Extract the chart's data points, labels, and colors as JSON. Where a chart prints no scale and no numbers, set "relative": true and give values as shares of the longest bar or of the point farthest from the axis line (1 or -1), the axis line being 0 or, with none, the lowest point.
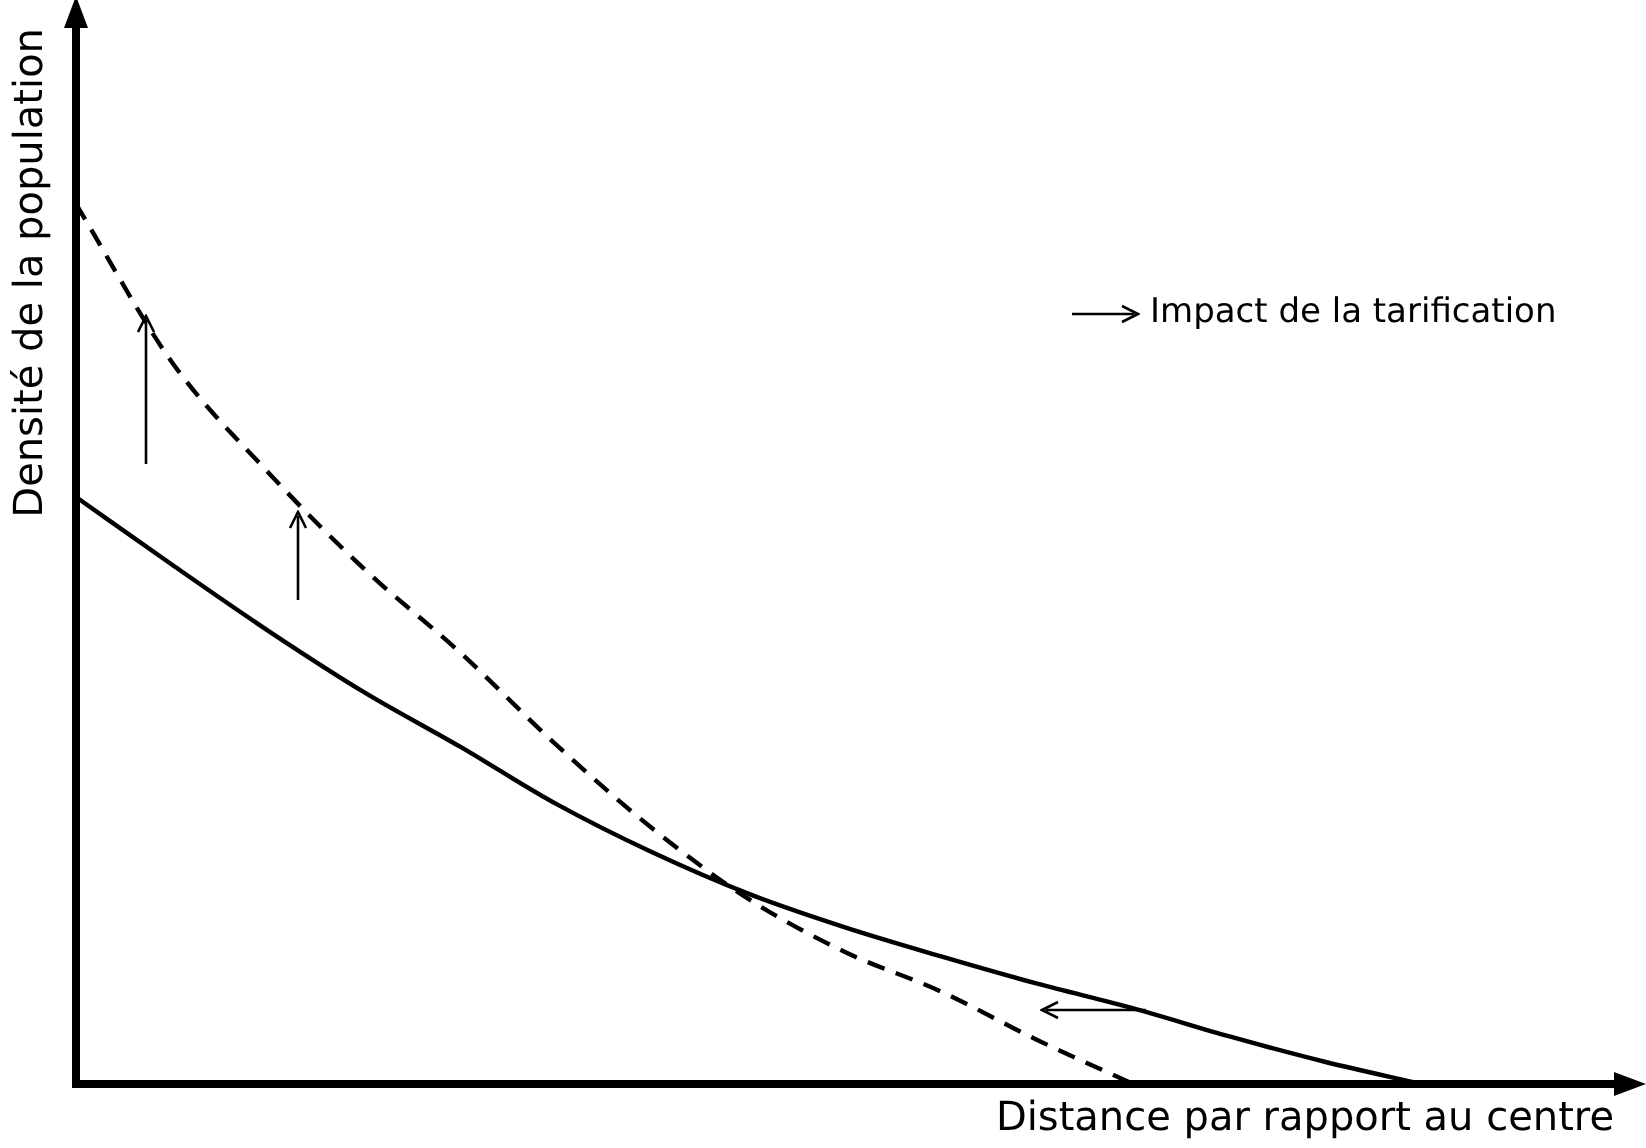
{
  "chart_data": {
    "type": "line",
    "relative": true,
    "xlabel": "Distance par rapport au centre",
    "ylabel": "Densité de la population",
    "categories": [
      null,
      null,
      null,
      null,
      null,
      null,
      null,
      null,
      null,
      null,
      null,
      null,
      null,
      null,
      null,
      null,
      null
    ],
    "series": [
      {
        "color": "#000000",
        "line_style": "solid",
        "values": [
          0.667,
          0.59,
          0.515,
          0.445,
          0.383,
          0.318,
          0.263,
          0.216,
          0.178,
          0.145,
          0.114,
          0.086,
          0.054,
          0.025,
          0,
          null,
          null
        ]
      },
      {
        "color": "#000000",
        "line_style": "dashed",
        "values": [
          1,
          0.82,
          0.695,
          0.585,
          0.49,
          0.385,
          0.29,
          0.21,
          0.15,
          0.105,
          0.05,
          0,
          null,
          null,
          null,
          null,
          null
        ]
      }
    ],
    "annotations": [
      "Impact de la tarification"
    ],
    "grid": false,
    "legend": false,
    "marker": "none"
  }
}
